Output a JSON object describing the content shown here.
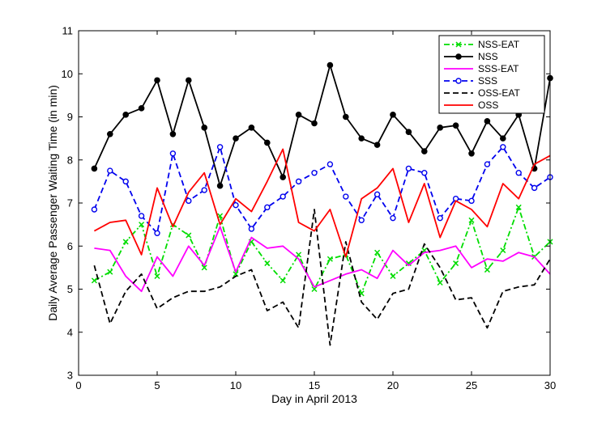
{
  "chart_data": {
    "type": "line",
    "title": "",
    "xlabel": "Day in April 2013",
    "ylabel": "Daily Average Passenger Waiting Time (in min)",
    "xlim": [
      0,
      30
    ],
    "ylim": [
      3,
      11
    ],
    "xticks": [
      0,
      5,
      10,
      15,
      20,
      25,
      30
    ],
    "yticks": [
      3,
      4,
      5,
      6,
      7,
      8,
      9,
      10,
      11
    ],
    "grid": false,
    "legend_position": "top-right",
    "x": [
      1,
      2,
      3,
      4,
      5,
      6,
      7,
      8,
      9,
      10,
      11,
      12,
      13,
      14,
      15,
      16,
      17,
      18,
      19,
      20,
      21,
      22,
      23,
      24,
      25,
      26,
      27,
      28,
      29,
      30
    ],
    "series": [
      {
        "name": "NSS-EAT",
        "color": "#00dd00",
        "dash": "dashdot",
        "marker": "x",
        "values": [
          5.2,
          5.4,
          6.1,
          6.5,
          5.3,
          6.5,
          6.25,
          5.5,
          6.7,
          5.35,
          6.1,
          5.6,
          5.2,
          5.8,
          5.0,
          5.7,
          5.8,
          4.9,
          5.85,
          5.3,
          5.6,
          5.9,
          5.15,
          5.6,
          6.6,
          5.45,
          5.9,
          6.9,
          5.75,
          6.1
        ]
      },
      {
        "name": "NSS",
        "color": "#000000",
        "dash": "solid",
        "marker": "dot",
        "values": [
          7.8,
          8.6,
          9.05,
          9.2,
          9.85,
          8.6,
          9.85,
          8.75,
          7.4,
          8.5,
          8.75,
          8.4,
          7.6,
          9.05,
          8.85,
          10.2,
          9.0,
          8.5,
          8.35,
          9.05,
          8.65,
          8.2,
          8.75,
          8.8,
          8.15,
          8.9,
          8.5,
          9.05,
          7.8,
          9.9
        ]
      },
      {
        "name": "SSS-EAT",
        "color": "#ff00ff",
        "dash": "solid",
        "marker": "none",
        "values": [
          5.95,
          5.9,
          5.3,
          4.95,
          5.75,
          5.3,
          6.0,
          5.55,
          6.45,
          5.4,
          6.2,
          5.95,
          6.0,
          5.7,
          5.05,
          5.2,
          5.35,
          5.45,
          5.25,
          5.9,
          5.55,
          5.85,
          5.9,
          6.0,
          5.5,
          5.7,
          5.65,
          5.85,
          5.75,
          5.35
        ]
      },
      {
        "name": "SSS",
        "color": "#0000ee",
        "dash": "dashed",
        "marker": "circle",
        "values": [
          6.85,
          7.75,
          7.5,
          6.7,
          6.3,
          8.15,
          7.05,
          7.3,
          8.3,
          6.95,
          6.4,
          6.9,
          7.15,
          7.5,
          7.7,
          7.9,
          7.15,
          6.6,
          7.2,
          6.65,
          7.8,
          7.7,
          6.65,
          7.1,
          7.05,
          7.9,
          8.3,
          7.7,
          7.35,
          7.6
        ]
      },
      {
        "name": "OSS-EAT",
        "color": "#000000",
        "dash": "dashed",
        "marker": "none",
        "values": [
          5.55,
          4.2,
          4.95,
          5.35,
          4.55,
          4.8,
          4.95,
          4.95,
          5.05,
          5.3,
          5.45,
          4.5,
          4.7,
          4.1,
          6.85,
          3.7,
          6.1,
          4.7,
          4.3,
          4.9,
          5.0,
          6.05,
          5.5,
          4.75,
          4.8,
          4.1,
          4.95,
          5.05,
          5.1,
          5.7
        ]
      },
      {
        "name": "OSS",
        "color": "#ff0000",
        "dash": "solid",
        "marker": "none",
        "values": [
          6.35,
          6.55,
          6.6,
          5.8,
          7.35,
          6.45,
          7.25,
          7.7,
          6.5,
          7.1,
          6.8,
          7.5,
          8.25,
          6.55,
          6.35,
          6.85,
          5.75,
          7.1,
          7.35,
          7.8,
          6.55,
          7.45,
          6.2,
          7.05,
          6.85,
          6.45,
          7.45,
          7.1,
          7.9,
          8.1
        ]
      }
    ]
  }
}
